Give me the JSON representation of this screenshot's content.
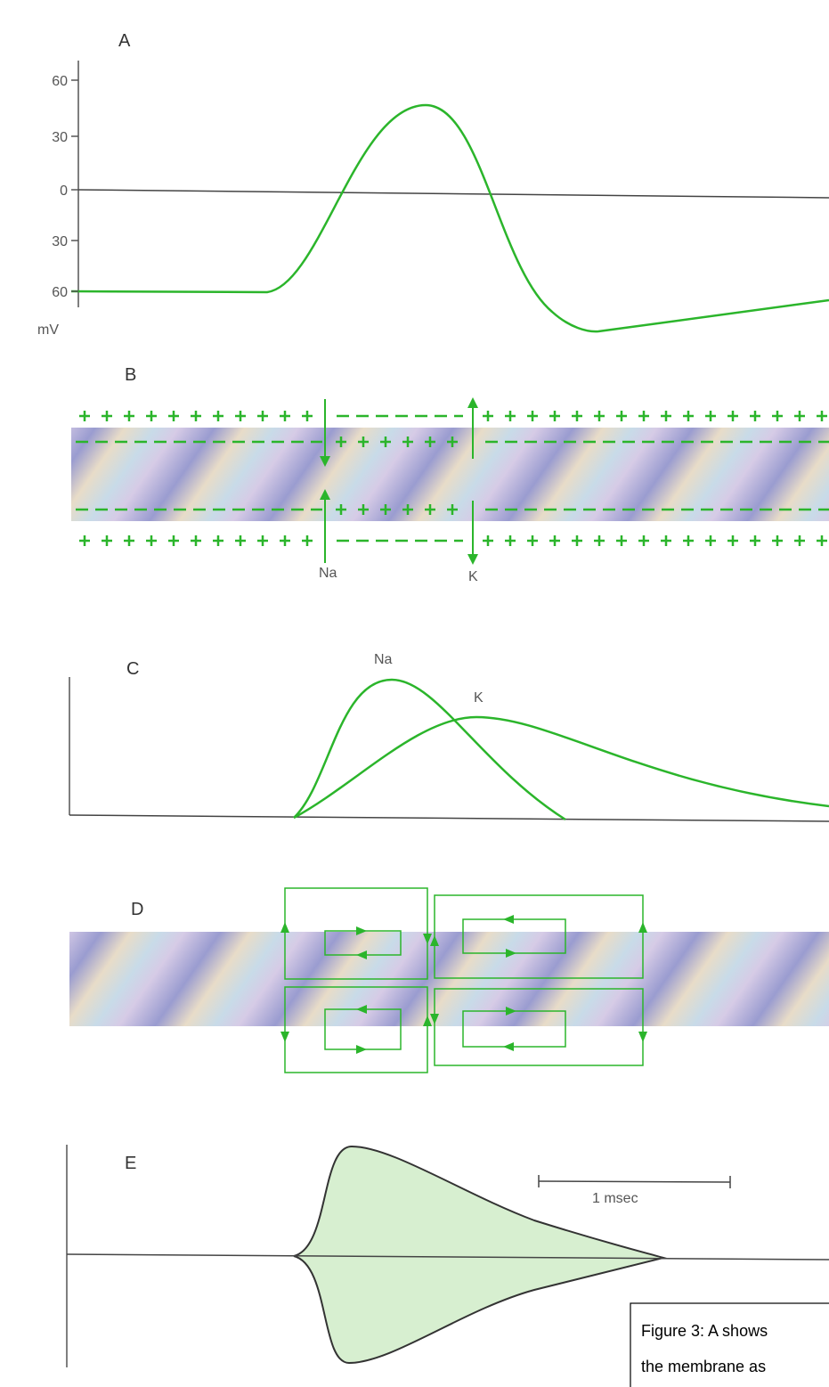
{
  "panels": [
    {
      "label": "A",
      "yticks": [
        "60",
        "30",
        "0",
        "30",
        "60"
      ],
      "unit": "mV"
    },
    {
      "label": "B",
      "ions": [
        "Na",
        "K"
      ]
    },
    {
      "label": "C",
      "curves": [
        "Na",
        "K"
      ]
    },
    {
      "label": "D"
    },
    {
      "label": "E",
      "scale": "1 msec"
    }
  ],
  "caption": [
    "Figure 3: A shows",
    "the membrane as"
  ]
}
